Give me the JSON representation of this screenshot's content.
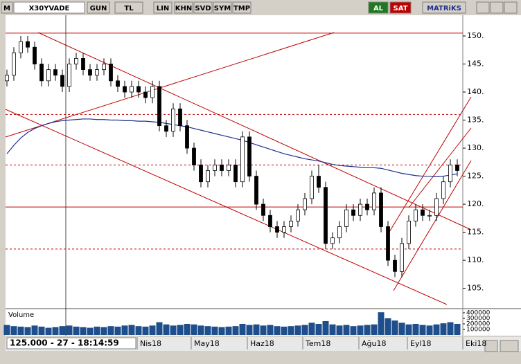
{
  "toolbar": {
    "logo": "M",
    "symbol": "X30YVADE",
    "buttons": [
      "GUN",
      "TL",
      "LIN",
      "KHN",
      "SVD",
      "SYM",
      "TMP"
    ],
    "buy": "AL",
    "sell": "SAT",
    "brand": "MATRiKS"
  },
  "status": "125.000 - 27 - 18:14:59",
  "chart_data": {
    "type": "candlestick",
    "x": [
      0,
      1,
      2,
      3,
      4,
      5,
      6,
      7,
      8,
      9,
      10,
      11,
      12,
      13,
      14,
      15,
      16,
      17,
      18,
      19,
      20,
      21,
      22,
      23,
      24,
      25,
      26,
      27,
      28,
      29,
      30,
      31,
      32,
      33,
      34,
      35,
      36,
      37,
      38,
      39,
      40,
      41,
      42,
      43,
      44,
      45,
      46,
      47,
      48,
      49,
      50,
      51,
      52,
      53,
      54,
      55,
      56,
      57,
      58,
      59,
      60,
      61,
      62,
      63,
      64,
      65
    ],
    "open": [
      142,
      143,
      147,
      149,
      148,
      145,
      142,
      144,
      143,
      141,
      145,
      146,
      144,
      143,
      144,
      145,
      142,
      141,
      140,
      141,
      140,
      139,
      141,
      134,
      133,
      137,
      134,
      130,
      127,
      124,
      126,
      127,
      126,
      127,
      124,
      132,
      125,
      120,
      118,
      116,
      115,
      116,
      117,
      119,
      121,
      125,
      123,
      113,
      114,
      116,
      119,
      118,
      120,
      119,
      122,
      116,
      110,
      108,
      113,
      117,
      119,
      118,
      118,
      121,
      124,
      127
    ],
    "high": [
      144,
      148,
      150,
      150,
      149,
      146,
      145,
      145,
      144,
      146,
      147,
      147,
      145,
      145,
      146,
      146,
      143,
      142,
      142,
      142,
      141,
      142,
      142,
      135,
      138,
      138,
      135,
      131,
      128,
      127,
      128,
      128,
      128,
      128,
      133,
      133,
      126,
      121,
      119,
      117,
      117,
      118,
      120,
      122,
      126,
      127,
      124,
      115,
      117,
      120,
      120,
      121,
      121,
      123,
      123,
      117,
      111,
      114,
      118,
      120,
      120,
      119,
      122,
      125,
      128,
      128
    ],
    "low": [
      141,
      142,
      146,
      147,
      144,
      141,
      141,
      142,
      140,
      140,
      144,
      143,
      142,
      142,
      143,
      141,
      140,
      139,
      139,
      139,
      138,
      138,
      133,
      132,
      132,
      133,
      129,
      126,
      123,
      123,
      125,
      125,
      125,
      123,
      123,
      124,
      119,
      117,
      115,
      114,
      114,
      115,
      116,
      118,
      120,
      122,
      112,
      112,
      113,
      115,
      117,
      117,
      118,
      118,
      115,
      109,
      107,
      107,
      112,
      116,
      117,
      117,
      117,
      120,
      123,
      125
    ],
    "close": [
      143,
      147,
      149,
      148,
      145,
      142,
      144,
      143,
      141,
      145,
      146,
      144,
      143,
      144,
      145,
      142,
      141,
      140,
      141,
      140,
      139,
      141,
      134,
      133,
      137,
      134,
      130,
      127,
      124,
      126,
      127,
      126,
      127,
      124,
      132,
      125,
      120,
      118,
      116,
      115,
      116,
      117,
      119,
      121,
      125,
      123,
      113,
      114,
      116,
      119,
      118,
      120,
      119,
      122,
      116,
      110,
      108,
      113,
      117,
      119,
      118,
      118,
      121,
      124,
      127,
      126
    ],
    "moving_average": [
      129,
      130.5,
      131.8,
      132.8,
      133.5,
      134,
      134.4,
      134.7,
      134.9,
      135,
      135.1,
      135.2,
      135.2,
      135.1,
      135.1,
      135,
      135,
      134.9,
      134.9,
      134.8,
      134.8,
      134.7,
      134.6,
      134.4,
      134.2,
      134,
      133.8,
      133.5,
      133.2,
      132.9,
      132.6,
      132.3,
      132,
      131.7,
      131.4,
      131,
      130.6,
      130.2,
      129.8,
      129.4,
      129,
      128.7,
      128.4,
      128.1,
      127.9,
      127.7,
      127.4,
      127.1,
      126.9,
      126.8,
      126.7,
      126.6,
      126.5,
      126.5,
      126.4,
      126.1,
      125.8,
      125.5,
      125.3,
      125.1,
      125,
      125,
      124.9,
      125,
      125.2,
      125.4
    ],
    "volume": [
      180000,
      160000,
      150000,
      140000,
      170000,
      150000,
      130000,
      140000,
      160000,
      170000,
      150000,
      140000,
      130000,
      150000,
      140000,
      160000,
      150000,
      170000,
      180000,
      160000,
      150000,
      170000,
      230000,
      190000,
      170000,
      180000,
      200000,
      190000,
      170000,
      160000,
      150000,
      140000,
      150000,
      160000,
      200000,
      180000,
      190000,
      170000,
      180000,
      160000,
      150000,
      160000,
      170000,
      180000,
      220000,
      200000,
      250000,
      190000,
      170000,
      180000,
      160000,
      170000,
      180000,
      190000,
      410000,
      300000,
      260000,
      220000,
      190000,
      200000,
      180000,
      170000,
      190000,
      210000,
      230000,
      200000
    ],
    "volume_label": "Volume",
    "xlim": [
      -0.2,
      65.8
    ],
    "xticks": [
      {
        "value": 18.8,
        "label": "Nis18"
      },
      {
        "value": 26.6,
        "label": "May18"
      },
      {
        "value": 34.7,
        "label": "Haz18"
      },
      {
        "value": 42.7,
        "label": "Tem18"
      },
      {
        "value": 50.8,
        "label": "Ağu18"
      },
      {
        "value": 57.8,
        "label": "Eyl18"
      },
      {
        "value": 65.8,
        "label": "Eki18"
      }
    ],
    "ylim": [
      101.5,
      153.7
    ],
    "yticks": [
      {
        "value": 105,
        "label": "105."
      },
      {
        "value": 110,
        "label": "110."
      },
      {
        "value": 115,
        "label": "115."
      },
      {
        "value": 120,
        "label": "120."
      },
      {
        "value": 125,
        "label": "125."
      },
      {
        "value": 130,
        "label": "130."
      },
      {
        "value": 135,
        "label": "135."
      },
      {
        "value": 140,
        "label": "140."
      },
      {
        "value": 145,
        "label": "145."
      },
      {
        "value": 150,
        "label": "150."
      }
    ],
    "volume_ylim": [
      0,
      450000
    ],
    "volume_ticks": [
      100000,
      200000,
      300000,
      400000
    ],
    "levels": [
      {
        "value": 150.5,
        "style": "solid"
      },
      {
        "value": 136,
        "style": "dashed"
      },
      {
        "value": 127,
        "style": "dashed"
      },
      {
        "value": 119.5,
        "style": "solid"
      },
      {
        "value": 112,
        "style": "dashed"
      }
    ],
    "up_color": "#ffffff",
    "down_color": "#000000",
    "ma_color": "#1c2f8c",
    "volume_color": "#1f4e8c",
    "level_color": "#c00000"
  }
}
